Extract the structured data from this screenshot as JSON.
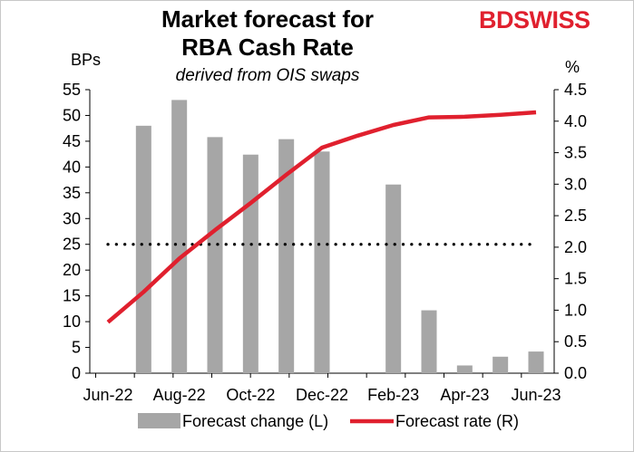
{
  "chart_data": {
    "type": "bar+line",
    "title_line1": "Market forecast for",
    "title_line2": "RBA Cash Rate",
    "subtitle": "derived from OIS swaps",
    "brand": {
      "part1": "BD",
      "part2": "SWISS"
    },
    "ylabel_left": "BPs",
    "ylabel_right": "%",
    "x_ticks": [
      "Jun-22",
      "Aug-22",
      "Oct-22",
      "Dec-22",
      "Feb-23",
      "Apr-23",
      "Jun-23"
    ],
    "y_left": {
      "min": 0,
      "max": 55,
      "step": 5,
      "ticks": [
        "0",
        "5",
        "10",
        "15",
        "20",
        "25",
        "30",
        "35",
        "40",
        "45",
        "50",
        "55"
      ]
    },
    "y_right": {
      "min": 0,
      "max": 4.5,
      "step": 0.5,
      "ticks": [
        "0.0",
        "0.5",
        "1.0",
        "1.5",
        "2.0",
        "2.5",
        "3.0",
        "3.5",
        "4.0",
        "4.5"
      ]
    },
    "months": [
      "Jun-22",
      "Jul-22",
      "Aug-22",
      "Sep-22",
      "Oct-22",
      "Nov-22",
      "Dec-22",
      "Jan-23",
      "Feb-23",
      "Mar-23",
      "Apr-23",
      "May-23",
      "Jun-23"
    ],
    "series": [
      {
        "name": "Forecast change (L)",
        "axis": "left",
        "type": "bar",
        "color": "#a6a6a6",
        "values": [
          null,
          48,
          53,
          45.8,
          42.4,
          45.4,
          43,
          null,
          36.6,
          12.2,
          1.5,
          3.2,
          4.2
        ]
      },
      {
        "name": "Forecast rate (R)",
        "axis": "right",
        "type": "line",
        "color": "#e0202e",
        "values": [
          0.81,
          1.29,
          1.82,
          2.27,
          2.7,
          3.15,
          3.58,
          3.77,
          3.94,
          4.06,
          4.07,
          4.1,
          4.14
        ]
      }
    ],
    "reference_line": {
      "axis": "left",
      "value": 25,
      "style": "dotted",
      "color": "#000000"
    },
    "legend": {
      "position": "bottom",
      "items": [
        "Forecast change (L)",
        "Forecast rate (R)"
      ]
    }
  }
}
